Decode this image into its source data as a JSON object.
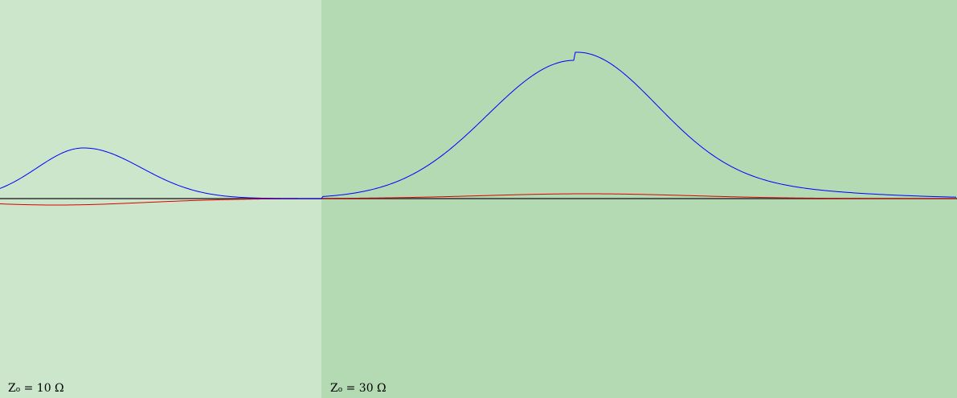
{
  "media": [
    {
      "label_prefix": "Z",
      "label_subscript": "o",
      "label_value": "= 10 Ω",
      "color": "#cce6cc"
    },
    {
      "label_prefix": "Z",
      "label_subscript": "o",
      "label_value": "= 30 Ω",
      "color": "#b3dab3"
    }
  ],
  "colors": {
    "axis": "#333333",
    "incident_wave": "#0000ff",
    "reflected_wave": "#dd0000"
  }
}
